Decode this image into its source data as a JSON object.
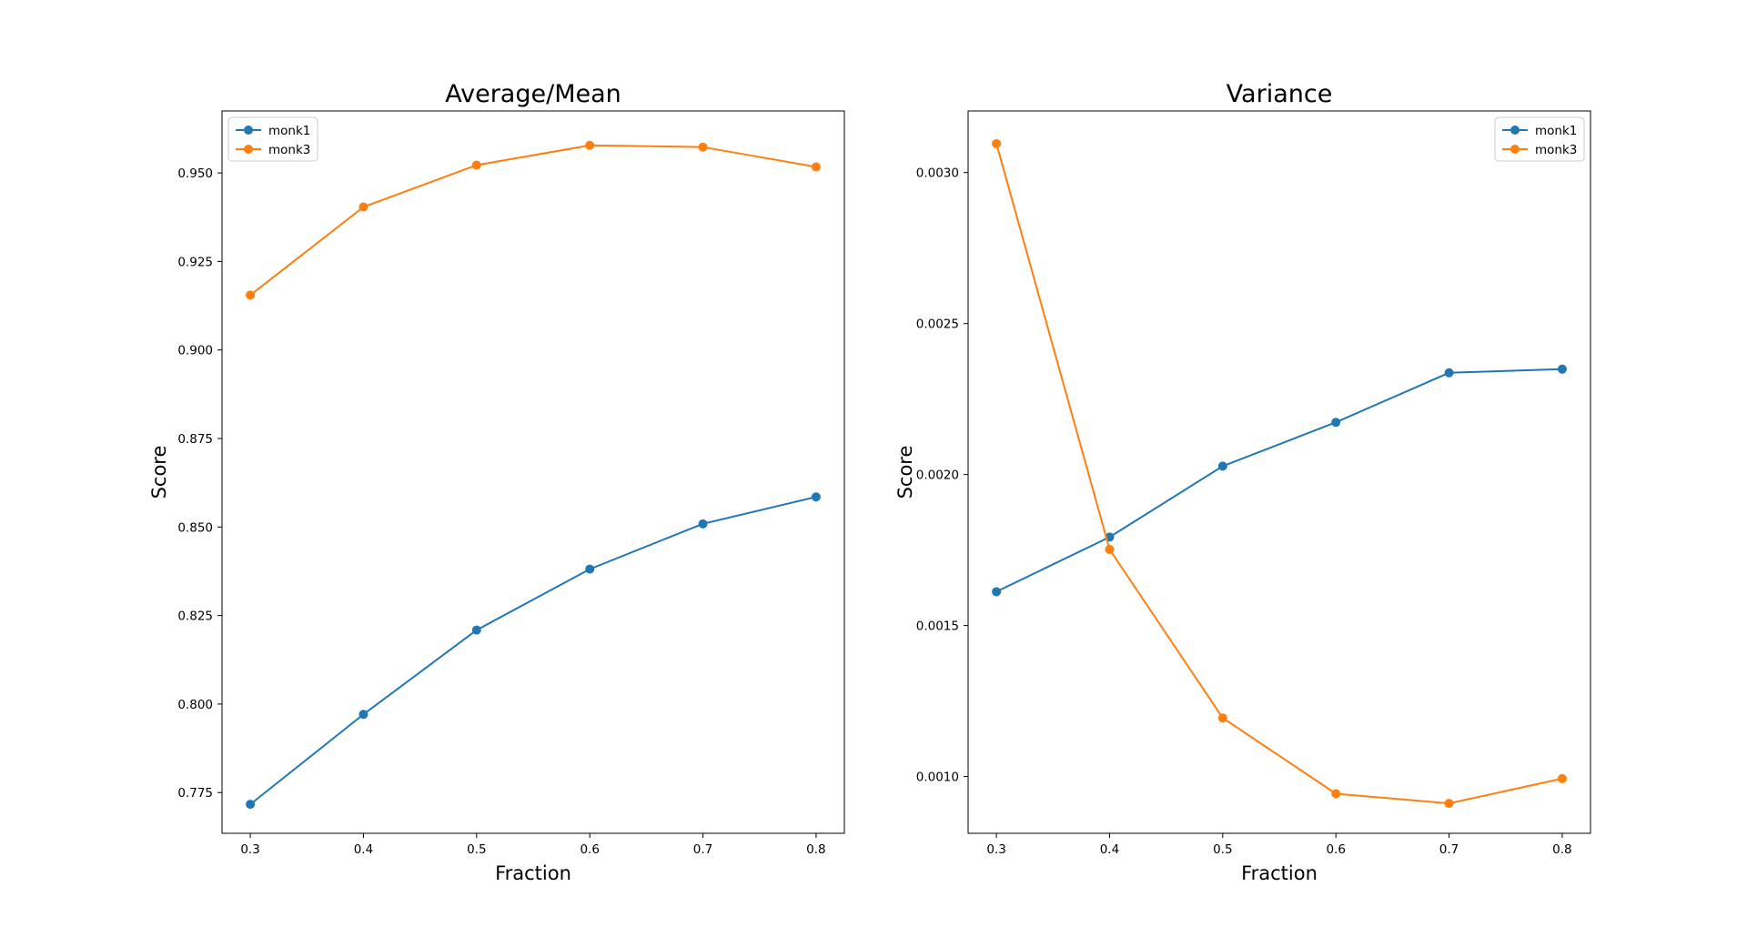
{
  "figure": {
    "background": "#ffffff"
  },
  "chart_data": [
    {
      "type": "line",
      "title": "Average/Mean",
      "xlabel": "Fraction",
      "ylabel": "Score",
      "x": [
        0.3,
        0.4,
        0.5,
        0.6,
        0.7,
        0.8
      ],
      "xticks": [
        "0.3",
        "0.4",
        "0.5",
        "0.6",
        "0.7",
        "0.8"
      ],
      "xlim": [
        0.275,
        0.825
      ],
      "yticks": [
        "0.775",
        "0.800",
        "0.825",
        "0.850",
        "0.875",
        "0.900",
        "0.925",
        "0.950"
      ],
      "ylim": [
        0.7635,
        0.9675
      ],
      "legend": "top-left",
      "grid": false,
      "series": [
        {
          "name": "monk1",
          "color": "#1f77b4",
          "values": [
            0.7717,
            0.7971,
            0.8209,
            0.8381,
            0.8509,
            0.8585
          ]
        },
        {
          "name": "monk3",
          "color": "#ff7f0e",
          "values": [
            0.9155,
            0.9404,
            0.9522,
            0.9578,
            0.9573,
            0.9517
          ]
        }
      ]
    },
    {
      "type": "line",
      "title": "Variance",
      "xlabel": "Fraction",
      "ylabel": "Score",
      "x": [
        0.3,
        0.4,
        0.5,
        0.6,
        0.7,
        0.8
      ],
      "xticks": [
        "0.3",
        "0.4",
        "0.5",
        "0.6",
        "0.7",
        "0.8"
      ],
      "xlim": [
        0.275,
        0.825
      ],
      "yticks": [
        "0.0010",
        "0.0015",
        "0.0020",
        "0.0025",
        "0.0030"
      ],
      "ylim": [
        0.000812,
        0.003204
      ],
      "legend": "top-right",
      "grid": false,
      "series": [
        {
          "name": "monk1",
          "color": "#1f77b4",
          "values": [
            0.001612,
            0.001793,
            0.002028,
            0.002173,
            0.002337,
            0.002349
          ]
        },
        {
          "name": "monk3",
          "color": "#ff7f0e",
          "values": [
            0.003096,
            0.001752,
            0.001194,
            0.000943,
            0.000911,
            0.000993
          ]
        }
      ]
    }
  ]
}
